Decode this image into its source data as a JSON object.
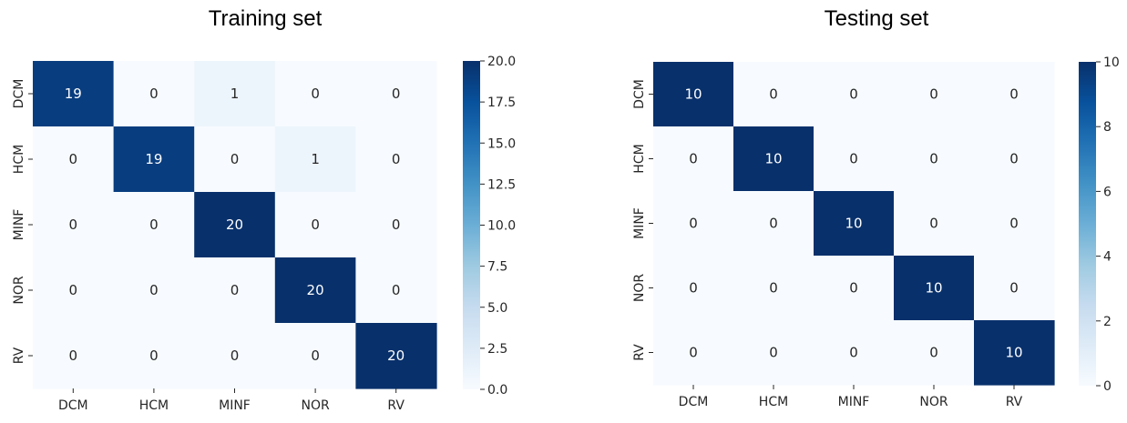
{
  "chart_data": [
    {
      "type": "heatmap",
      "title": "Training set",
      "row_labels": [
        "DCM",
        "HCM",
        "MINF",
        "NOR",
        "RV"
      ],
      "col_labels": [
        "DCM",
        "HCM",
        "MINF",
        "NOR",
        "RV"
      ],
      "values": [
        [
          19,
          0,
          1,
          0,
          0
        ],
        [
          0,
          19,
          0,
          1,
          0
        ],
        [
          0,
          0,
          20,
          0,
          0
        ],
        [
          0,
          0,
          0,
          20,
          0
        ],
        [
          0,
          0,
          0,
          0,
          20
        ]
      ],
      "vmin": 0,
      "vmax": 20,
      "colormap": "Blues",
      "colorbar_ticks": [
        0,
        2.5,
        5,
        7.5,
        10,
        12.5,
        15,
        17.5,
        20
      ],
      "colorbar_tick_labels": [
        "0.0",
        "2.5",
        "5.0",
        "7.5",
        "10.0",
        "12.5",
        "15.0",
        "17.5",
        "20.0"
      ]
    },
    {
      "type": "heatmap",
      "title": "Testing set",
      "row_labels": [
        "DCM",
        "HCM",
        "MINF",
        "NOR",
        "RV"
      ],
      "col_labels": [
        "DCM",
        "HCM",
        "MINF",
        "NOR",
        "RV"
      ],
      "values": [
        [
          10,
          0,
          0,
          0,
          0
        ],
        [
          0,
          10,
          0,
          0,
          0
        ],
        [
          0,
          0,
          10,
          0,
          0
        ],
        [
          0,
          0,
          0,
          10,
          0
        ],
        [
          0,
          0,
          0,
          0,
          10
        ]
      ],
      "vmin": 0,
      "vmax": 10,
      "colormap": "Blues",
      "colorbar_ticks": [
        0,
        2,
        4,
        6,
        8,
        10
      ],
      "colorbar_tick_labels": [
        "0",
        "2",
        "4",
        "6",
        "8",
        "10"
      ]
    }
  ],
  "colors": {
    "blues_low": "#f7fbff",
    "blues_mid": "#6baed6",
    "blues_high": "#08306b",
    "text_dark": "#262626",
    "text_light": "#ffffff"
  }
}
